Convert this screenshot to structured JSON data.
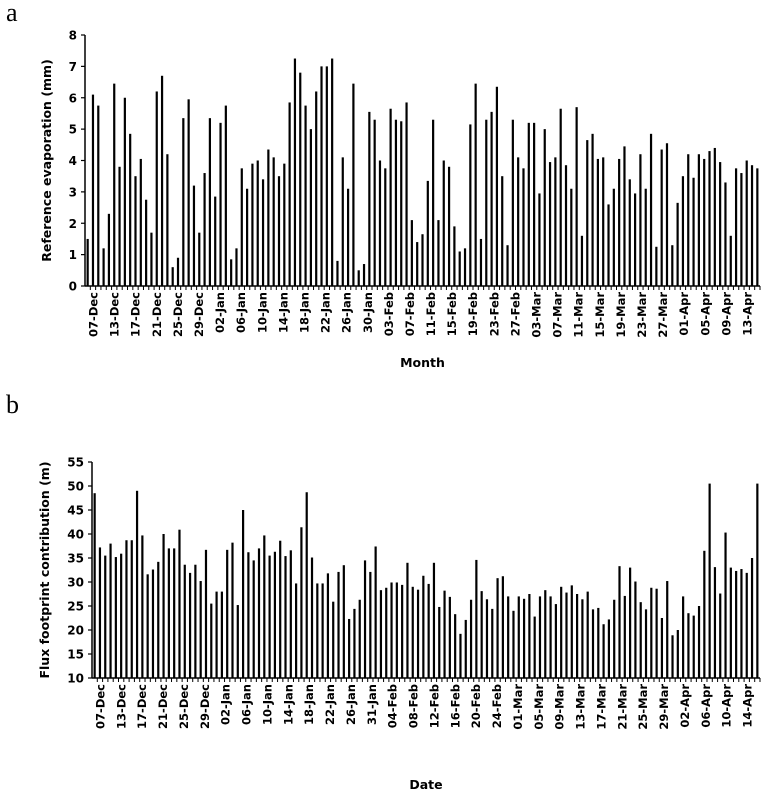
{
  "panels": {
    "a": {
      "letter": "a"
    },
    "b": {
      "letter": "b"
    }
  },
  "chart_data": [
    {
      "id": "a",
      "type": "bar",
      "title": "",
      "xlabel": "Month",
      "ylabel": "Reference evaporation (mm)",
      "ylim": [
        0,
        8
      ],
      "yticks": [
        0,
        1,
        2,
        3,
        4,
        5,
        6,
        7,
        8
      ],
      "grid": false,
      "legend": null,
      "tick_labels": [
        "07-Dec",
        "13-Dec",
        "17-Dec",
        "21-Dec",
        "25-Dec",
        "29-Dec",
        "02-Jan",
        "06-Jan",
        "10-Jan",
        "14-Jan",
        "18-Jan",
        "22-Jan",
        "26-Jan",
        "30-Jan",
        "03-Feb",
        "07-Feb",
        "11-Feb",
        "15-Feb",
        "19-Feb",
        "23-Feb",
        "27-Feb",
        "03-Mar",
        "07-Mar",
        "11-Mar",
        "15-Mar",
        "19-Mar",
        "23-Mar",
        "27-Mar",
        "01-Apr",
        "05-Apr",
        "09-Apr",
        "13-Apr"
      ],
      "values": [
        1.5,
        6.1,
        5.75,
        1.2,
        2.3,
        6.45,
        3.8,
        6.0,
        4.85,
        3.5,
        4.05,
        2.75,
        1.7,
        6.2,
        6.7,
        4.2,
        0.6,
        0.9,
        5.35,
        5.95,
        3.2,
        1.7,
        3.6,
        5.35,
        2.85,
        5.2,
        5.75,
        0.85,
        1.2,
        3.75,
        3.1,
        3.9,
        4.0,
        3.4,
        4.35,
        4.1,
        3.5,
        3.9,
        5.85,
        7.25,
        6.8,
        5.75,
        5.0,
        6.2,
        7.0,
        7.0,
        7.25,
        0.8,
        4.1,
        3.1,
        6.45,
        0.5,
        0.7,
        5.55,
        5.3,
        4.0,
        3.75,
        5.65,
        5.3,
        5.25,
        5.85,
        2.1,
        1.4,
        1.65,
        3.35,
        5.3,
        2.1,
        4.0,
        3.8,
        1.9,
        1.1,
        1.2,
        5.15,
        6.45,
        1.5,
        5.3,
        5.55,
        6.35,
        3.5,
        1.3,
        5.3,
        4.1,
        3.75,
        5.2,
        5.2,
        2.95,
        5.0,
        3.95,
        4.1,
        5.65,
        3.85,
        3.1,
        5.7,
        1.6,
        4.65,
        4.85,
        4.05,
        4.1,
        2.6,
        3.1,
        4.05,
        4.45,
        3.4,
        2.95,
        4.2,
        3.1,
        4.85,
        1.25,
        4.35,
        4.55,
        1.3,
        2.65,
        3.5,
        4.2,
        3.45,
        4.2,
        4.05,
        4.3,
        4.4,
        3.95,
        3.3,
        1.6,
        3.75,
        3.6,
        4.0,
        3.85,
        3.75
      ]
    },
    {
      "id": "b",
      "type": "bar",
      "title": "",
      "xlabel": "Date",
      "ylabel": "Flux footprint contribution (m)",
      "ylim": [
        10,
        55
      ],
      "yticks": [
        10,
        15,
        20,
        25,
        30,
        35,
        40,
        45,
        50,
        55
      ],
      "grid": false,
      "legend": null,
      "tick_labels": [
        "07-Dec",
        "13-Dec",
        "17-Dec",
        "21-Dec",
        "25-Dec",
        "29-Dec",
        "02-Jan",
        "06-Jan",
        "10-Jan",
        "14-Jan",
        "18-Jan",
        "22-Jan",
        "26-Jan",
        "31-Jan",
        "04-Feb",
        "08-Feb",
        "12-Feb",
        "16-Feb",
        "20-Feb",
        "24-Feb",
        "01-Mar",
        "05-Mar",
        "09-Mar",
        "13-Mar",
        "17-Mar",
        "21-Mar",
        "25-Mar",
        "29-Mar",
        "02-Apr",
        "06-Apr",
        "10-Apr",
        "14-Apr"
      ],
      "values": [
        48.5,
        37.2,
        35.5,
        38.0,
        35.2,
        35.9,
        38.7,
        38.7,
        49.0,
        39.7,
        31.6,
        32.6,
        34.2,
        40.0,
        37.0,
        37.0,
        40.9,
        33.6,
        31.9,
        33.6,
        30.2,
        36.7,
        25.5,
        28.0,
        28.0,
        36.7,
        38.2,
        25.2,
        45.0,
        36.2,
        34.5,
        37.0,
        39.7,
        35.5,
        36.3,
        38.6,
        35.4,
        36.6,
        29.7,
        41.4,
        48.7,
        35.1,
        29.7,
        29.7,
        31.8,
        25.9,
        32.1,
        33.5,
        22.3,
        24.4,
        26.3,
        34.5,
        32.1,
        37.4,
        28.3,
        28.8,
        29.9,
        29.9,
        29.4,
        34.0,
        29.0,
        28.4,
        31.3,
        29.6,
        34.0,
        24.8,
        28.2,
        26.9,
        23.3,
        19.2,
        22.1,
        26.3,
        34.6,
        28.1,
        26.4,
        24.4,
        30.8,
        31.2,
        27.0,
        24.0,
        27.0,
        26.5,
        27.5,
        22.8,
        27.0,
        28.3,
        27.0,
        25.4,
        29.0,
        27.8,
        29.3,
        27.5,
        26.4,
        28.0,
        24.3,
        24.6,
        21.2,
        22.2,
        26.3,
        33.3,
        27.1,
        33.0,
        30.1,
        25.8,
        24.3,
        28.8,
        28.6,
        22.5,
        30.2,
        18.9,
        20.0,
        27.0,
        23.5,
        23.0,
        25.0,
        36.5,
        50.5,
        33.1,
        27.6,
        40.3,
        33.0,
        32.3,
        32.7,
        31.9,
        35.0,
        50.5
      ]
    }
  ]
}
